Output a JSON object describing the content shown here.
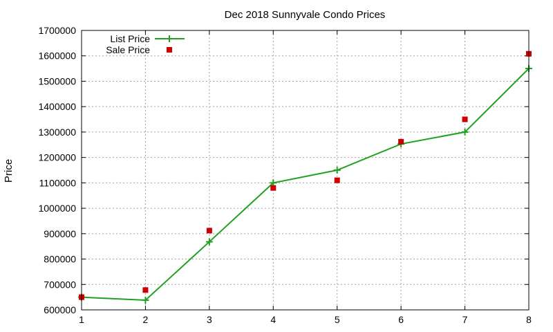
{
  "chart_data": {
    "type": "line",
    "title": "Dec 2018 Sunnyvale Condo Prices",
    "xlabel": "",
    "ylabel": "Price",
    "xlim": [
      1,
      8
    ],
    "ylim": [
      600000,
      1700000
    ],
    "x_ticks": [
      "1",
      "2",
      "3",
      "4",
      "5",
      "6",
      "7",
      "8"
    ],
    "y_ticks": [
      "600000",
      "700000",
      "800000",
      "900000",
      "1000000",
      "1100000",
      "1200000",
      "1300000",
      "1400000",
      "1500000",
      "1600000",
      "1700000"
    ],
    "grid": true,
    "legend_position": "top-left",
    "x": [
      1,
      2,
      3,
      4,
      5,
      6,
      7,
      8
    ],
    "series": [
      {
        "name": "List Price",
        "style": "line+cross",
        "color": "#1fa01f",
        "values": [
          650000,
          638000,
          868000,
          1100000,
          1150000,
          1253000,
          1300000,
          1550000
        ]
      },
      {
        "name": "Sale Price",
        "style": "square",
        "color": "#cc0000",
        "values": [
          650000,
          678000,
          912000,
          1080000,
          1110000,
          1262000,
          1350000,
          1608000
        ]
      }
    ]
  }
}
